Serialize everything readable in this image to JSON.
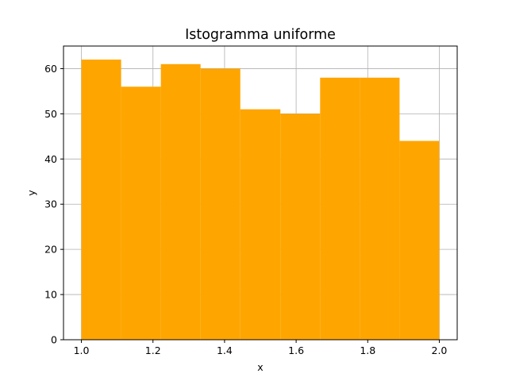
{
  "chart_data": {
    "type": "bar",
    "title": "Istogramma uniforme",
    "xlabel": "x",
    "ylabel": "y",
    "bin_edges": [
      1.0,
      1.111,
      1.222,
      1.333,
      1.444,
      1.556,
      1.667,
      1.778,
      1.889,
      2.0
    ],
    "values": [
      62,
      56,
      61,
      60,
      51,
      50,
      58,
      58,
      44
    ],
    "xlim": [
      0.95,
      2.05
    ],
    "ylim": [
      0,
      65
    ],
    "xticks": [
      1.0,
      1.2,
      1.4,
      1.6,
      1.8,
      2.0
    ],
    "xtick_labels": [
      "1.0",
      "1.2",
      "1.4",
      "1.6",
      "1.8",
      "2.0"
    ],
    "yticks": [
      0,
      10,
      20,
      30,
      40,
      50,
      60
    ],
    "ytick_labels": [
      "0",
      "10",
      "20",
      "30",
      "40",
      "50",
      "60"
    ],
    "grid": true,
    "bar_color": "#ffa500",
    "grid_color": "#b0b0b0"
  }
}
